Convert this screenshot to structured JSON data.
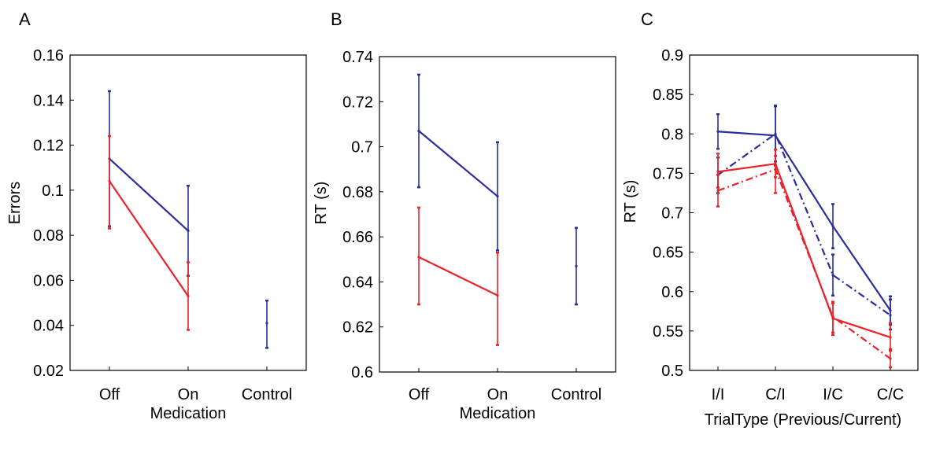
{
  "colors": {
    "blue": "#2b2e9a",
    "red": "#e8242a",
    "axis": "#000000"
  },
  "chart_data": [
    {
      "panel": "A",
      "type": "line",
      "xlabel": "Medication",
      "ylabel": "Errors",
      "categories": [
        "Off",
        "On",
        "Control"
      ],
      "ylim": [
        0.02,
        0.16
      ],
      "yticks": [
        0.16,
        0.14,
        0.12,
        0.1,
        0.08,
        0.06,
        0.04,
        0.02
      ],
      "ytick_labels": [
        "0.16",
        "0.14",
        "0.12",
        "0.1",
        "0.08",
        "0.06",
        "0.04",
        "0.02"
      ],
      "series": [
        {
          "color": "#2b2e9a",
          "style": "solid",
          "values": [
            0.114,
            0.082,
            null
          ],
          "err_low": [
            0.084,
            0.062,
            null
          ],
          "err_high": [
            0.144,
            0.102,
            null
          ]
        },
        {
          "color": "#e8242a",
          "style": "solid",
          "values": [
            0.104,
            0.053,
            null
          ],
          "err_low": [
            0.083,
            0.038,
            null
          ],
          "err_high": [
            0.124,
            0.068,
            null
          ]
        },
        {
          "color": "#2b2e9a",
          "style": "none",
          "values": [
            null,
            null,
            0.041
          ],
          "err_low": [
            null,
            null,
            0.03
          ],
          "err_high": [
            null,
            null,
            0.051
          ]
        }
      ]
    },
    {
      "panel": "B",
      "type": "line",
      "xlabel": "Medication",
      "ylabel": "RT (s)",
      "categories": [
        "Off",
        "On",
        "Control"
      ],
      "ylim": [
        0.6,
        0.74
      ],
      "yticks": [
        0.74,
        0.72,
        0.7,
        0.68,
        0.66,
        0.64,
        0.62,
        0.6
      ],
      "ytick_labels": [
        "0.74",
        "0.72",
        "0.7",
        "0.68",
        "0.66",
        "0.64",
        "0.62",
        "0.6"
      ],
      "series": [
        {
          "color": "#2b2e9a",
          "style": "solid",
          "values": [
            0.707,
            0.678,
            null
          ],
          "err_low": [
            0.682,
            0.654,
            null
          ],
          "err_high": [
            0.732,
            0.702,
            null
          ]
        },
        {
          "color": "#e8242a",
          "style": "solid",
          "values": [
            0.651,
            0.634,
            null
          ],
          "err_low": [
            0.63,
            0.612,
            null
          ],
          "err_high": [
            0.673,
            0.653,
            null
          ]
        },
        {
          "color": "#2b2e9a",
          "style": "none",
          "values": [
            null,
            null,
            0.647
          ],
          "err_low": [
            null,
            null,
            0.63
          ],
          "err_high": [
            null,
            null,
            0.664
          ]
        }
      ]
    },
    {
      "panel": "C",
      "type": "line",
      "xlabel": "TrialType (Previous/Current)",
      "ylabel": "RT (s)",
      "categories": [
        "I/I",
        "C/I",
        "I/C",
        "C/C"
      ],
      "ylim": [
        0.5,
        0.9
      ],
      "yticks": [
        0.9,
        0.85,
        0.8,
        0.75,
        0.7,
        0.65,
        0.6,
        0.55,
        0.5
      ],
      "ytick_labels": [
        "0.9",
        "0.85",
        "0.8",
        "0.75",
        "0.7",
        "0.65",
        "0.6",
        "0.55",
        "0.5"
      ],
      "series": [
        {
          "color": "#2b2e9a",
          "style": "solid",
          "values": [
            0.803,
            0.798,
            0.683,
            0.576
          ],
          "err_low": [
            0.781,
            0.76,
            0.655,
            0.558
          ],
          "err_high": [
            0.825,
            0.836,
            0.711,
            0.594
          ]
        },
        {
          "color": "#2b2e9a",
          "style": "dashdot",
          "values": [
            0.748,
            0.8,
            0.621,
            0.57
          ],
          "err_low": [
            0.725,
            0.765,
            0.595,
            0.552
          ],
          "err_high": [
            0.77,
            0.835,
            0.647,
            0.59
          ]
        },
        {
          "color": "#e8242a",
          "style": "solid",
          "values": [
            0.752,
            0.762,
            0.566,
            0.542
          ],
          "err_low": [
            0.732,
            0.745,
            0.548,
            0.525
          ],
          "err_high": [
            0.775,
            0.78,
            0.585,
            0.56
          ]
        },
        {
          "color": "#e8242a",
          "style": "dashdot",
          "values": [
            0.728,
            0.755,
            0.568,
            0.515
          ],
          "err_low": [
            0.708,
            0.725,
            0.545,
            0.504
          ],
          "err_high": [
            0.748,
            0.772,
            0.587,
            0.527
          ]
        }
      ]
    }
  ]
}
